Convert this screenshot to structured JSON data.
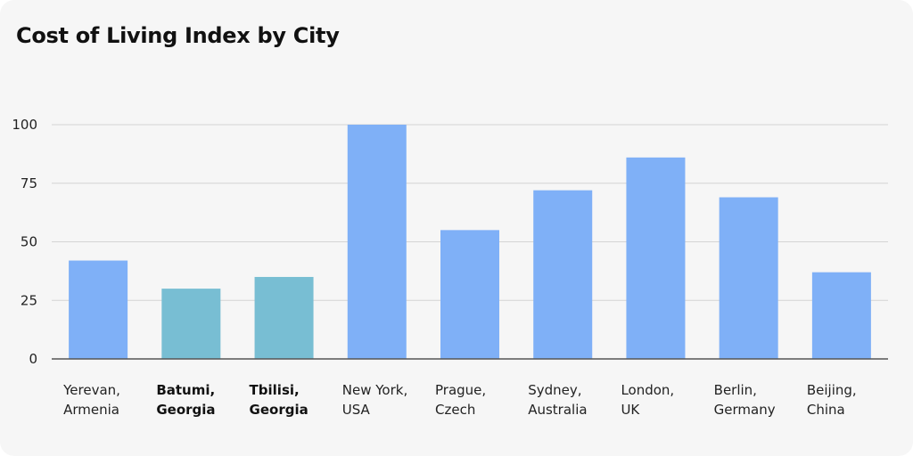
{
  "chart_data": {
    "type": "bar",
    "title": "Cost of Living Index by City",
    "xlabel": "",
    "ylabel": "",
    "ylim": [
      0,
      100
    ],
    "yticks": [
      0,
      25,
      50,
      75,
      100
    ],
    "grid": true,
    "categories": [
      [
        "Yerevan,",
        "Armenia"
      ],
      [
        "Batumi,",
        "Georgia"
      ],
      [
        "Tbilisi,",
        "Georgia"
      ],
      [
        "New York,",
        "USA"
      ],
      [
        "Prague,",
        "Czech"
      ],
      [
        "Sydney,",
        "Australia"
      ],
      [
        "London,",
        "UK"
      ],
      [
        "Berlin,",
        "Germany"
      ],
      [
        "Beijing,",
        "China"
      ]
    ],
    "values": [
      42,
      30,
      35,
      100,
      55,
      72,
      86,
      69,
      37
    ],
    "highlighted": [
      false,
      true,
      true,
      false,
      false,
      false,
      false,
      false,
      false
    ],
    "colors": {
      "bar": "#7fb0f7",
      "highlight": "#78bed3",
      "grid": "#d4d4d4",
      "axis": "#555555"
    }
  }
}
